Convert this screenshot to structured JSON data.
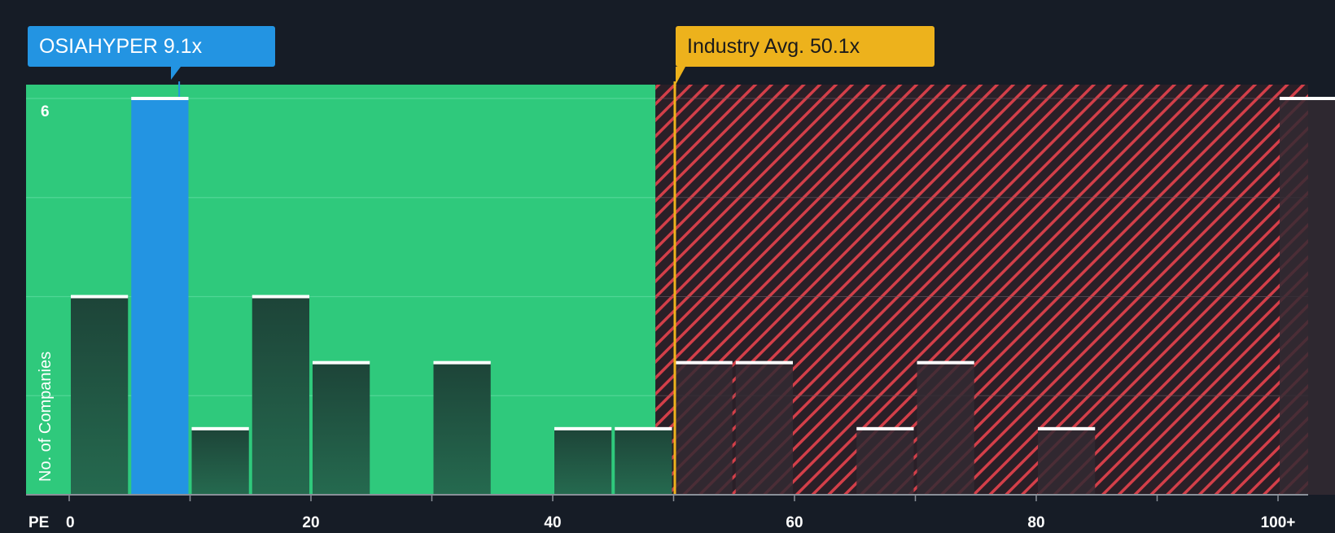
{
  "chart_data": {
    "type": "bar",
    "title": "",
    "xlabel": "PE",
    "ylabel": "No. of Companies",
    "xlim": [
      0,
      100
    ],
    "ylim": [
      0,
      6
    ],
    "bin_width": 5,
    "x_ticks": [
      0,
      20,
      40,
      60,
      80,
      100
    ],
    "x_tick_labels": [
      "0",
      "20",
      "40",
      "60",
      "80",
      "100+"
    ],
    "y_tick_labels": [
      {
        "value": 6,
        "label": "6"
      }
    ],
    "gridlines": [
      1.5,
      3,
      4.5,
      6
    ],
    "grid": true,
    "bins": [
      {
        "start": 0,
        "count": 3
      },
      {
        "start": 5,
        "count": 6,
        "highlight": true
      },
      {
        "start": 10,
        "count": 1
      },
      {
        "start": 15,
        "count": 3
      },
      {
        "start": 20,
        "count": 2
      },
      {
        "start": 30,
        "count": 2
      },
      {
        "start": 40,
        "count": 1
      },
      {
        "start": 45,
        "count": 1
      },
      {
        "start": 50,
        "count": 2
      },
      {
        "start": 55,
        "count": 2
      },
      {
        "start": 65,
        "count": 1
      },
      {
        "start": 70,
        "count": 2
      },
      {
        "start": 80,
        "count": 1
      },
      {
        "start": 100,
        "count": 6
      }
    ],
    "company": {
      "label": "OSIAHYPER 9.1x",
      "value": 9.1
    },
    "industry_avg": {
      "label": "Industry Avg. 50.1x",
      "value": 50.1
    },
    "fair_zone_end": 48.5,
    "colors": {
      "background": "#161c26",
      "fair_zone": "#2fc97c",
      "over_zone": "#2a1f27",
      "hatch": "#d33f49",
      "bar": "#1f4b3e",
      "bar_over": "#332a33",
      "bar_cap": "#ffffff",
      "highlight": "#2394e2",
      "industry": "#edb21c",
      "axis": "#8a9099",
      "text": "#ffffff"
    }
  }
}
